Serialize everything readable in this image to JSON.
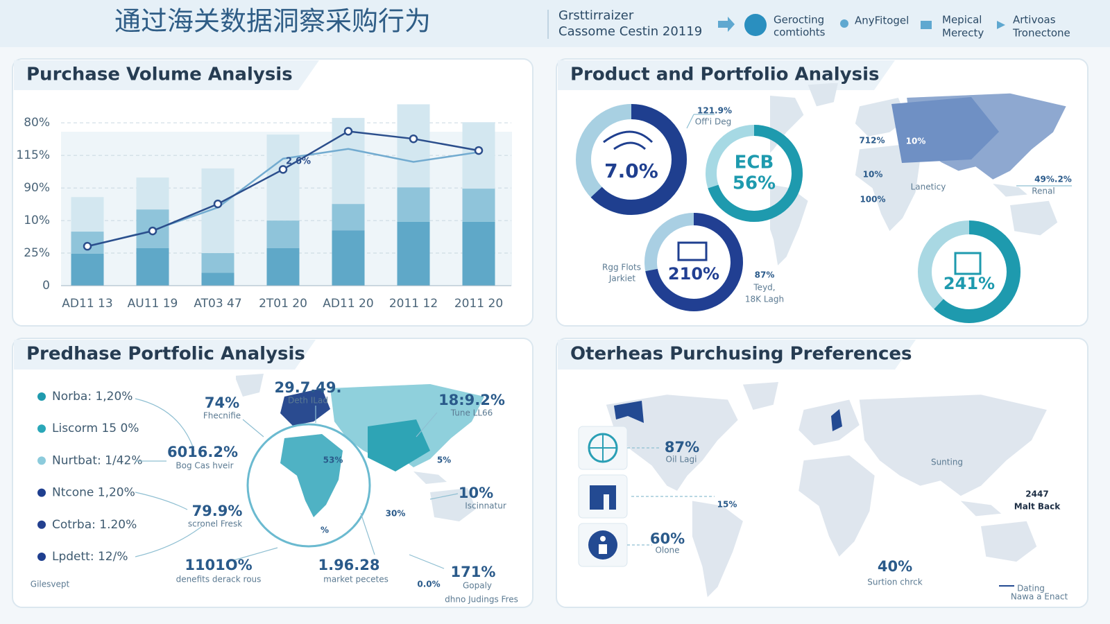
{
  "header": {
    "title": "通过海关数据洞察采购行为",
    "brand": [
      "Grsttirraizer",
      "Cassome Cestin 20119"
    ],
    "nav": [
      [
        "Gerocting",
        "comtiohts"
      ],
      [
        "AnyFitogel"
      ],
      [
        "Mepical",
        "Merecty"
      ],
      [
        "Artivoas",
        "Tronectone"
      ]
    ]
  },
  "chart_data": [
    {
      "type": "bar",
      "title": "Purchase Volume Analysis",
      "stacked": true,
      "categories": [
        "AD11 13",
        "AU11 19",
        "AT03 47",
        "2T01 20",
        "AD11 20",
        "2011 12",
        "2011 20"
      ],
      "series": [
        {
          "color": "#5fa8c8",
          "values": [
            0.98,
            1.15,
            0.4,
            1.15,
            1.7,
            1.96,
            1.96
          ]
        },
        {
          "color": "#8fc4da",
          "values": [
            0.68,
            1.19,
            0.6,
            0.85,
            0.81,
            1.06,
            1.02
          ]
        },
        {
          "color": "#d3e7f0",
          "values": [
            1.06,
            0.98,
            2.6,
            2.64,
            2.64,
            2.55,
            2.04
          ]
        },
        {
          "type": "line",
          "color": "#72abd0",
          "values": [
            1.2,
            1.7,
            2.4,
            3.9,
            4.2,
            3.8,
            4.1
          ]
        },
        {
          "type": "line",
          "color": "#2b4e8c",
          "markers": true,
          "values": [
            1.21,
            1.68,
            2.51,
            3.57,
            4.74,
            4.51,
            4.15
          ]
        }
      ],
      "ylim": [
        0,
        5.6
      ],
      "yticks": [
        0,
        {
          "value": 1,
          "label": "25%"
        },
        {
          "value": 2,
          "label": "10%"
        },
        {
          "value": 3,
          "label": "90%"
        },
        {
          "value": 4,
          "label": "115%"
        },
        {
          "value": 5,
          "label": "80%"
        }
      ],
      "grid": true,
      "annotation": "2.6%"
    },
    {
      "type": "donut",
      "title": "Product and Portfolio Analysis",
      "donuts": [
        {
          "center": [
            "7.0%"
          ],
          "share": 63,
          "color": "#1f3f8f",
          "track": "#a8d0e2"
        },
        {
          "center": [
            "ECB",
            "56%"
          ],
          "share": 70,
          "color": "#1e9aae",
          "track": "#a6d9e4"
        },
        {
          "center": [
            "210%"
          ],
          "share": 72,
          "color": "#213f92",
          "track": "#a9cfe3"
        },
        {
          "center": [
            "241%"
          ],
          "share": 62,
          "color": "#1e9aae",
          "track": "#a9d8e3"
        }
      ],
      "labels": [
        "121.9%",
        "Off'i Deg",
        "Rgg Flots",
        "Jarkiet",
        "87%",
        "Teyd,",
        "18K Lagh",
        "712%",
        "10%",
        "10%",
        "100%",
        "Laneticy",
        "49%.2%",
        "Renal"
      ]
    },
    {
      "type": "map",
      "title": "Predhase Portfolic Analysis",
      "legend": [
        {
          "label": "Norba: 1,20%",
          "color": "#1f9aae"
        },
        {
          "label": "Liscorm 15 0%",
          "color": "#2aa7b8"
        },
        {
          "label": "Nurtbat: 1/42%",
          "color": "#8ccbdc"
        },
        {
          "label": "Ntcone 1,20%",
          "color": "#1f3f8f"
        },
        {
          "label": "Cotrba: 1.20%",
          "color": "#23408f"
        },
        {
          "label": "Lpdett: 12/%",
          "color": "#1f3f8f"
        }
      ],
      "callouts": [
        {
          "value": "29.7.49.",
          "caption": "Deth ILad"
        },
        {
          "value": "74%",
          "caption": "Fhecnifie"
        },
        {
          "value": "18:9.2%",
          "caption": "Tune LL66"
        },
        {
          "value": "6016.2%",
          "caption": "Bog Cas hveir"
        },
        {
          "value": "79.9%",
          "caption": "scronel Fresk"
        },
        {
          "value": "10%",
          "caption": "Iscinnatur"
        },
        {
          "value": "1101O%",
          "caption": "denefits derack rous"
        },
        {
          "value": "1.96.28",
          "caption": "market pecetes"
        },
        {
          "value": "171%",
          "caption": "Gopaly"
        }
      ],
      "labels": [
        "53%",
        "5%",
        "30%",
        "%",
        "0.0%",
        "dhno Judings Fres",
        "Gilesvept"
      ]
    },
    {
      "type": "map",
      "title": "Oterheas Purchusing Preferences",
      "callouts": [
        {
          "value": "87%",
          "caption": "Oil Lagi"
        },
        {
          "value": "15%"
        },
        {
          "value": "60%",
          "caption": "Olone"
        },
        {
          "value": "40%",
          "caption": "Surtion chrck"
        },
        {
          "value": "2447",
          "caption": "Malt Back"
        }
      ],
      "labels": [
        "Sunting",
        "Dating",
        "Nawa a Enact"
      ]
    }
  ]
}
